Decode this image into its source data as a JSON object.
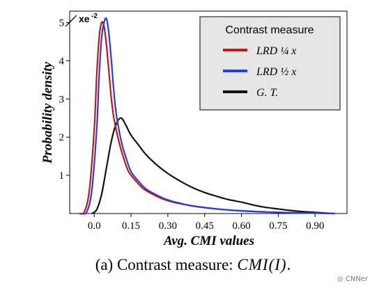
{
  "chart_data": {
    "type": "line",
    "xlabel": "Avg. CMI values",
    "ylabel": "Probability density",
    "y_scale_label": "xe",
    "y_scale_exp": "-2",
    "xlim": [
      -0.1,
      1.03
    ],
    "ylim": [
      0,
      5.3
    ],
    "xticks": [
      "0.0",
      "0.15",
      "0.30",
      "0.45",
      "0.60",
      "0.75",
      "0.90"
    ],
    "xtick_values": [
      0.0,
      0.15,
      0.3,
      0.45,
      0.6,
      0.75,
      0.9
    ],
    "yticks": [
      "1",
      "2",
      "3",
      "4",
      "5"
    ],
    "ytick_values": [
      1,
      2,
      3,
      4,
      5
    ],
    "grid": false,
    "legend": {
      "title": "Contrast measure",
      "position": "top-right",
      "background": "#e6e6e6"
    },
    "series": [
      {
        "name": "LRD ¼ x",
        "color": "#cc1111",
        "x": [
          -0.06,
          -0.04,
          -0.02,
          0.0,
          0.01,
          0.02,
          0.03,
          0.04,
          0.05,
          0.06,
          0.07,
          0.08,
          0.1,
          0.12,
          0.14,
          0.17,
          0.2,
          0.24,
          0.28,
          0.32,
          0.4,
          0.5,
          0.6,
          0.7,
          0.8,
          0.9,
          0.98
        ],
        "values": [
          0.0,
          0.05,
          0.6,
          2.2,
          3.6,
          4.6,
          5.0,
          4.9,
          4.4,
          3.7,
          3.0,
          2.5,
          1.9,
          1.45,
          1.1,
          0.85,
          0.65,
          0.5,
          0.38,
          0.3,
          0.2,
          0.12,
          0.07,
          0.04,
          0.02,
          0.01,
          0.0
        ]
      },
      {
        "name": "LRD ½ x",
        "color": "#1f3fe0",
        "x": [
          -0.05,
          -0.03,
          -0.01,
          0.01,
          0.02,
          0.03,
          0.04,
          0.05,
          0.06,
          0.07,
          0.08,
          0.09,
          0.11,
          0.13,
          0.15,
          0.18,
          0.21,
          0.25,
          0.29,
          0.33,
          0.4,
          0.5,
          0.6,
          0.7,
          0.8,
          0.9,
          0.98
        ],
        "values": [
          0.0,
          0.05,
          0.6,
          2.2,
          3.6,
          4.6,
          5.0,
          5.1,
          4.7,
          4.0,
          3.2,
          2.6,
          1.9,
          1.45,
          1.1,
          0.85,
          0.65,
          0.5,
          0.38,
          0.3,
          0.2,
          0.12,
          0.07,
          0.04,
          0.02,
          0.01,
          0.0
        ]
      },
      {
        "name": "G. T.",
        "color": "#111111",
        "x": [
          -0.01,
          0.01,
          0.03,
          0.05,
          0.07,
          0.09,
          0.11,
          0.13,
          0.15,
          0.18,
          0.21,
          0.25,
          0.3,
          0.35,
          0.4,
          0.45,
          0.5,
          0.55,
          0.6,
          0.65,
          0.7,
          0.75,
          0.8,
          0.85,
          0.9,
          0.95,
          0.98
        ],
        "values": [
          0.0,
          0.1,
          0.5,
          1.2,
          1.9,
          2.35,
          2.5,
          2.3,
          2.05,
          1.8,
          1.55,
          1.3,
          1.05,
          0.85,
          0.68,
          0.55,
          0.45,
          0.36,
          0.3,
          0.22,
          0.16,
          0.12,
          0.08,
          0.05,
          0.03,
          0.01,
          0.0
        ]
      }
    ]
  },
  "caption": {
    "prefix": "(a) Contrast measure: ",
    "math": "CMI(I)",
    "suffix": "."
  },
  "watermark": "CNNer"
}
